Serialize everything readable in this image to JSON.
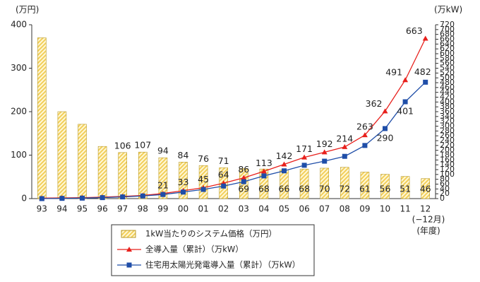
{
  "chart_data": {
    "type": "bar_line",
    "y_unit": "(万円)",
    "y2_unit": "(万kW)",
    "categories": [
      "93",
      "94",
      "95",
      "96",
      "97",
      "98",
      "99",
      "00",
      "01",
      "02",
      "03",
      "04",
      "05",
      "06",
      "07",
      "08",
      "09",
      "10",
      "11",
      "12"
    ],
    "x_note": "(−12月)",
    "x_unit": "(年度)",
    "ylim": [
      0,
      400
    ],
    "yticks": [
      0,
      100,
      200,
      300,
      400
    ],
    "y2lim": [
      0,
      720
    ],
    "y2ticks": [
      0,
      20,
      40,
      60,
      80,
      100,
      120,
      140,
      160,
      180,
      200,
      220,
      240,
      260,
      280,
      300,
      320,
      340,
      360,
      380,
      400,
      420,
      440,
      460,
      480,
      500,
      520,
      540,
      560,
      580,
      600,
      620,
      640,
      660,
      680,
      700,
      720
    ],
    "series": [
      {
        "name": "1kW当たりのシステム価格（万円）",
        "kind": "bar",
        "color": "#f2cf5a",
        "values": [
          370,
          200,
          171,
          120,
          106,
          107,
          94,
          84,
          76,
          71,
          69,
          68,
          66,
          68,
          70,
          72,
          61,
          56,
          51,
          46
        ],
        "value_labels": [
          null,
          null,
          null,
          null,
          "106",
          "107",
          "94",
          "84",
          "76",
          "71",
          "69",
          "68",
          "66",
          "68",
          "70",
          "72",
          "61",
          "56",
          "51",
          "46"
        ]
      },
      {
        "name": "全導入量（累計）（万kW）",
        "kind": "line",
        "axis": "y2",
        "color": "#e8201c",
        "values": [
          2,
          3,
          4,
          6,
          9,
          13,
          21,
          33,
          45,
          64,
          86,
          113,
          142,
          171,
          192,
          214,
          263,
          362,
          491,
          663
        ],
        "value_labels": [
          null,
          null,
          null,
          null,
          null,
          null,
          "21",
          "33",
          "45",
          "64",
          "86",
          "113",
          "142",
          "171",
          "192",
          "214",
          "263",
          "362",
          "491",
          "663"
        ]
      },
      {
        "name": "住宅用太陽光発電導入量（累計）（万kW）",
        "kind": "line",
        "axis": "y2",
        "color": "#1f4ea8",
        "values": [
          0,
          1,
          2,
          4,
          7,
          11,
          17,
          27,
          38,
          52,
          70,
          94,
          115,
          138,
          155,
          175,
          220,
          290,
          401,
          482
        ],
        "value_labels": [
          null,
          null,
          null,
          null,
          null,
          null,
          null,
          null,
          null,
          null,
          null,
          null,
          null,
          null,
          null,
          null,
          null,
          "290",
          "401",
          "482"
        ]
      }
    ]
  }
}
